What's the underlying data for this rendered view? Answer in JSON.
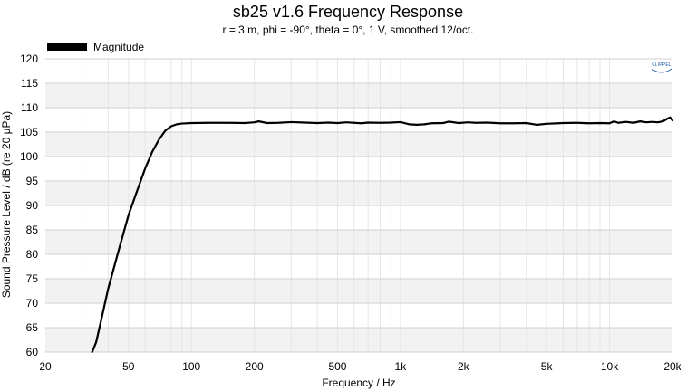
{
  "chart_data": {
    "type": "line",
    "title": "sb25 v1.6 Frequency Response",
    "subtitle": "r = 3 m, phi = -90°, theta = 0°, 1 V, smoothed 12/oct.",
    "xlabel": "Frequency / Hz",
    "ylabel": "Sound Pressure Level / dB (re 20 µPa)",
    "xscale": "log",
    "xlim": [
      20,
      20000
    ],
    "ylim": [
      60,
      120
    ],
    "grid": true,
    "legend_position": "top-left",
    "logo_text": "KLIPPEL",
    "x_ticks": [
      {
        "value": 20,
        "label": "20"
      },
      {
        "value": 50,
        "label": "50"
      },
      {
        "value": 100,
        "label": "100"
      },
      {
        "value": 200,
        "label": "200"
      },
      {
        "value": 500,
        "label": "500"
      },
      {
        "value": 1000,
        "label": "1k"
      },
      {
        "value": 2000,
        "label": "2k"
      },
      {
        "value": 5000,
        "label": "5k"
      },
      {
        "value": 10000,
        "label": "10k"
      },
      {
        "value": 20000,
        "label": "20k"
      }
    ],
    "y_ticks": [
      60,
      65,
      70,
      75,
      80,
      85,
      90,
      95,
      100,
      105,
      110,
      115,
      120
    ],
    "series": [
      {
        "name": "Magnitude",
        "color": "#000000",
        "points": [
          [
            33.5,
            60.0
          ],
          [
            35,
            62.0
          ],
          [
            37,
            66.5
          ],
          [
            40,
            73.0
          ],
          [
            45,
            81.0
          ],
          [
            50,
            88.0
          ],
          [
            55,
            93.0
          ],
          [
            60,
            97.5
          ],
          [
            65,
            101.0
          ],
          [
            70,
            103.5
          ],
          [
            75,
            105.3
          ],
          [
            80,
            106.2
          ],
          [
            85,
            106.6
          ],
          [
            90,
            106.75
          ],
          [
            100,
            106.85
          ],
          [
            120,
            106.9
          ],
          [
            150,
            106.9
          ],
          [
            180,
            106.85
          ],
          [
            200,
            107.0
          ],
          [
            210,
            107.2
          ],
          [
            230,
            106.85
          ],
          [
            260,
            106.9
          ],
          [
            300,
            107.05
          ],
          [
            350,
            106.95
          ],
          [
            400,
            106.85
          ],
          [
            450,
            106.95
          ],
          [
            500,
            106.85
          ],
          [
            550,
            107.0
          ],
          [
            600,
            106.9
          ],
          [
            650,
            106.8
          ],
          [
            700,
            106.95
          ],
          [
            800,
            106.9
          ],
          [
            900,
            106.95
          ],
          [
            1000,
            107.05
          ],
          [
            1100,
            106.6
          ],
          [
            1200,
            106.5
          ],
          [
            1300,
            106.6
          ],
          [
            1400,
            106.8
          ],
          [
            1600,
            106.85
          ],
          [
            1700,
            107.15
          ],
          [
            1900,
            106.85
          ],
          [
            2100,
            107.0
          ],
          [
            2300,
            106.9
          ],
          [
            2600,
            106.95
          ],
          [
            3000,
            106.8
          ],
          [
            3500,
            106.8
          ],
          [
            4000,
            106.85
          ],
          [
            4500,
            106.5
          ],
          [
            5000,
            106.7
          ],
          [
            6000,
            106.85
          ],
          [
            7000,
            106.9
          ],
          [
            8000,
            106.8
          ],
          [
            9000,
            106.85
          ],
          [
            10000,
            106.8
          ],
          [
            10500,
            107.2
          ],
          [
            11000,
            106.9
          ],
          [
            12000,
            107.1
          ],
          [
            13000,
            106.9
          ],
          [
            14000,
            107.2
          ],
          [
            15000,
            107.0
          ],
          [
            16000,
            107.1
          ],
          [
            17000,
            107.0
          ],
          [
            18000,
            107.2
          ],
          [
            19000,
            107.8
          ],
          [
            19500,
            108.0
          ],
          [
            20000,
            107.4
          ]
        ]
      }
    ]
  }
}
